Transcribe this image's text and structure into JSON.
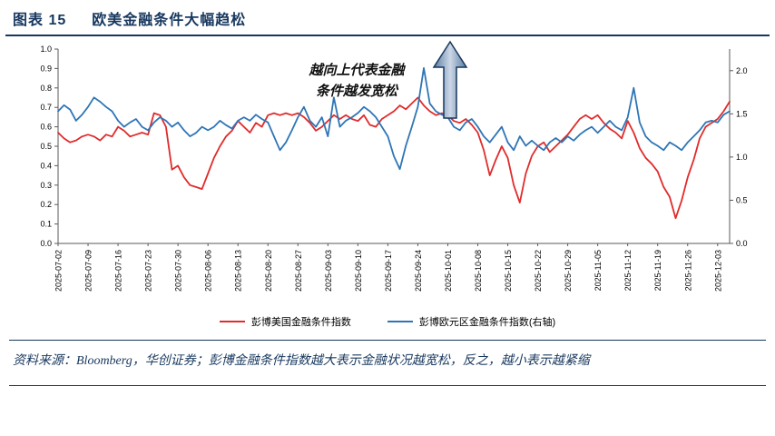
{
  "header": {
    "label": "图表 15",
    "title": "欧美金融条件大幅趋松"
  },
  "annotation": {
    "line1": "越向上代表金融",
    "line2": "条件越发宽松"
  },
  "legend": {
    "us": "彭博美国金融条件指数",
    "eu": "彭博欧元区金融条件指数(右轴)"
  },
  "footer": {
    "source_note": "资料来源：Bloomberg，华创证券；彭博金融条件指数越大表示金融状况越宽松，反之，越小表示越紧缩"
  },
  "colors": {
    "accent_navy": "#17375e",
    "us_line": "#e02b2b",
    "eu_line": "#2e75b6",
    "arrow_edge": "#17375e"
  },
  "chart_data": {
    "type": "line",
    "title": "",
    "xlabel": "",
    "ylabel": "",
    "grid": false,
    "legend_position": "bottom",
    "x_tick_labels": [
      "2025-07-02",
      "2025-07-09",
      "2025-07-16",
      "2025-07-23",
      "2025-07-30",
      "2025-08-06",
      "2025-08-13",
      "2025-08-20",
      "2025-08-27",
      "2025-09-03",
      "2025-09-10",
      "2025-09-17",
      "2025-09-24",
      "2025-10-01",
      "2025-10-08",
      "2025-10-15",
      "2025-10-22",
      "2025-10-29",
      "2025-11-05",
      "2025-11-12",
      "2025-11-19",
      "2025-11-26",
      "2025-12-03"
    ],
    "x_label_step": 5,
    "left_axis": {
      "min": 0,
      "max": 1.0,
      "ticks": [
        0.0,
        0.1,
        0.2,
        0.3,
        0.4,
        0.5,
        0.6,
        0.7,
        0.8,
        0.9,
        1.0
      ]
    },
    "right_axis": {
      "min": 0,
      "max": 2.25,
      "ticks": [
        0.0,
        0.5,
        1.0,
        1.5,
        2.0
      ]
    },
    "series": [
      {
        "name": "彭博美国金融条件指数",
        "axis": "left",
        "color": "#e02b2b",
        "values": [
          0.57,
          0.54,
          0.52,
          0.53,
          0.55,
          0.56,
          0.55,
          0.53,
          0.56,
          0.55,
          0.6,
          0.58,
          0.55,
          0.56,
          0.57,
          0.56,
          0.67,
          0.66,
          0.6,
          0.38,
          0.4,
          0.34,
          0.3,
          0.29,
          0.28,
          0.36,
          0.44,
          0.5,
          0.55,
          0.58,
          0.63,
          0.6,
          0.57,
          0.62,
          0.6,
          0.66,
          0.67,
          0.66,
          0.67,
          0.66,
          0.67,
          0.65,
          0.62,
          0.58,
          0.6,
          0.63,
          0.66,
          0.64,
          0.66,
          0.64,
          0.63,
          0.66,
          0.61,
          0.6,
          0.64,
          0.66,
          0.68,
          0.71,
          0.69,
          0.72,
          0.75,
          0.71,
          0.68,
          0.66,
          0.67,
          0.66,
          0.63,
          0.62,
          0.64,
          0.61,
          0.57,
          0.48,
          0.35,
          0.43,
          0.5,
          0.44,
          0.3,
          0.21,
          0.36,
          0.45,
          0.5,
          0.52,
          0.47,
          0.5,
          0.53,
          0.56,
          0.6,
          0.64,
          0.66,
          0.64,
          0.66,
          0.62,
          0.59,
          0.57,
          0.54,
          0.63,
          0.57,
          0.49,
          0.44,
          0.41,
          0.37,
          0.29,
          0.24,
          0.13,
          0.22,
          0.34,
          0.43,
          0.54,
          0.6,
          0.62,
          0.64,
          0.68,
          0.73
        ]
      },
      {
        "name": "彭博欧元区金融条件指数(右轴)",
        "axis": "right",
        "color": "#2e75b6",
        "values": [
          1.53,
          1.6,
          1.55,
          1.42,
          1.49,
          1.58,
          1.69,
          1.64,
          1.58,
          1.53,
          1.42,
          1.35,
          1.4,
          1.44,
          1.35,
          1.31,
          1.4,
          1.46,
          1.42,
          1.35,
          1.4,
          1.31,
          1.24,
          1.28,
          1.35,
          1.31,
          1.35,
          1.42,
          1.37,
          1.33,
          1.42,
          1.46,
          1.42,
          1.49,
          1.44,
          1.4,
          1.24,
          1.08,
          1.17,
          1.31,
          1.46,
          1.58,
          1.42,
          1.35,
          1.46,
          1.24,
          1.69,
          1.35,
          1.42,
          1.46,
          1.51,
          1.58,
          1.53,
          1.46,
          1.35,
          1.24,
          1.01,
          0.86,
          1.13,
          1.35,
          1.58,
          2.03,
          1.62,
          1.53,
          1.49,
          1.46,
          1.35,
          1.31,
          1.4,
          1.44,
          1.35,
          1.24,
          1.17,
          1.26,
          1.35,
          1.17,
          1.08,
          1.24,
          1.13,
          1.19,
          1.13,
          1.08,
          1.17,
          1.22,
          1.17,
          1.24,
          1.19,
          1.26,
          1.31,
          1.35,
          1.28,
          1.35,
          1.42,
          1.35,
          1.31,
          1.46,
          1.8,
          1.4,
          1.24,
          1.17,
          1.13,
          1.08,
          1.17,
          1.13,
          1.08,
          1.17,
          1.24,
          1.31,
          1.4,
          1.42,
          1.4,
          1.49,
          1.53
        ]
      }
    ]
  }
}
